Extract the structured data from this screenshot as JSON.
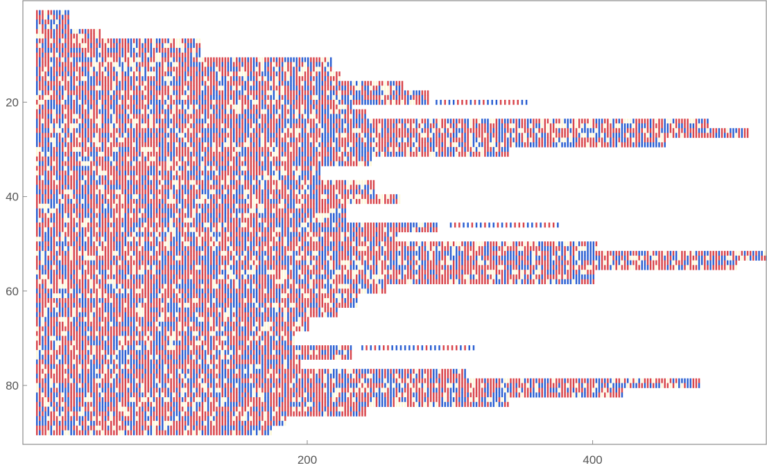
{
  "chart_data": {
    "type": "heatmap",
    "title": "",
    "xlabel": "",
    "ylabel": "",
    "x_ticks": [
      "200",
      "400"
    ],
    "x_tick_values": [
      200,
      400
    ],
    "y_ticks": [
      "20",
      "40",
      "60",
      "80"
    ],
    "y_tick_values": [
      20,
      40,
      60,
      80
    ],
    "xlim": [
      10,
      550
    ],
    "ylim": [
      0,
      91
    ],
    "y_reversed": true,
    "row_extents": [
      {
        "rows": [
          1,
          4
        ],
        "x_end": 32
      },
      {
        "rows": [
          5,
          6
        ],
        "x_end": 55
      },
      {
        "rows": [
          7,
          10
        ],
        "x_end": 124
      },
      {
        "rows": [
          11,
          13
        ],
        "x_end": 216
      },
      {
        "rows": [
          14,
          15
        ],
        "x_end": 222
      },
      {
        "rows": [
          16,
          17
        ],
        "x_end": 266
      },
      {
        "rows": [
          18,
          20
        ],
        "x_end": 285
      },
      {
        "rows": [
          21
        ],
        "x_end": 230
      },
      {
        "rows": [
          22,
          23
        ],
        "x_end": 240
      },
      {
        "rows": [
          24,
          25
        ],
        "x_end": 480
      },
      {
        "rows": [
          26,
          27
        ],
        "x_end": 508
      },
      {
        "rows": [
          28,
          29
        ],
        "x_end": 450
      },
      {
        "rows": [
          30,
          31
        ],
        "x_end": 340
      },
      {
        "rows": [
          32,
          33
        ],
        "x_end": 245
      },
      {
        "rows": [
          34,
          36
        ],
        "x_end": 208
      },
      {
        "rows": [
          37,
          39
        ],
        "x_end": 246
      },
      {
        "rows": [
          40,
          41
        ],
        "x_end": 265
      },
      {
        "rows": [
          42,
          45
        ],
        "x_end": 226
      },
      {
        "rows": [
          46,
          47
        ],
        "x_end": 290
      },
      {
        "rows": [
          48,
          49
        ],
        "x_end": 262
      },
      {
        "rows": [
          50,
          51
        ],
        "x_end": 402
      },
      {
        "rows": [
          52,
          53
        ],
        "x_end": 530
      },
      {
        "rows": [
          54,
          55
        ],
        "x_end": 500
      },
      {
        "rows": [
          56,
          58
        ],
        "x_end": 400
      },
      {
        "rows": [
          59,
          60
        ],
        "x_end": 255
      },
      {
        "rows": [
          61,
          63
        ],
        "x_end": 235
      },
      {
        "rows": [
          64,
          65
        ],
        "x_end": 220
      },
      {
        "rows": [
          66,
          68
        ],
        "x_end": 200
      },
      {
        "rows": [
          69,
          71
        ],
        "x_end": 190
      },
      {
        "rows": [
          72,
          74
        ],
        "x_end": 230
      },
      {
        "rows": [
          75,
          76
        ],
        "x_end": 195
      },
      {
        "rows": [
          77,
          78
        ],
        "x_end": 310
      },
      {
        "rows": [
          79,
          80
        ],
        "x_end": 475
      },
      {
        "rows": [
          81,
          82
        ],
        "x_end": 420
      },
      {
        "rows": [
          83,
          84
        ],
        "x_end": 340
      },
      {
        "rows": [
          85,
          86
        ],
        "x_end": 240
      },
      {
        "rows": [
          87,
          88
        ],
        "x_end": 185
      },
      {
        "rows": [
          89,
          90
        ],
        "x_end": 175
      }
    ],
    "isolated_segments": [
      {
        "row": 20,
        "x_start": 290,
        "x_end": 355
      },
      {
        "row": 46,
        "x_start": 300,
        "x_end": 375
      },
      {
        "row": 72,
        "x_start": 238,
        "x_end": 318
      }
    ],
    "colors": {
      "red": "#d8444b",
      "blue": "#2a5ed1",
      "cream": "#fdf8d8",
      "frame": "#8a8a8a",
      "tick_text": "#555555"
    }
  }
}
